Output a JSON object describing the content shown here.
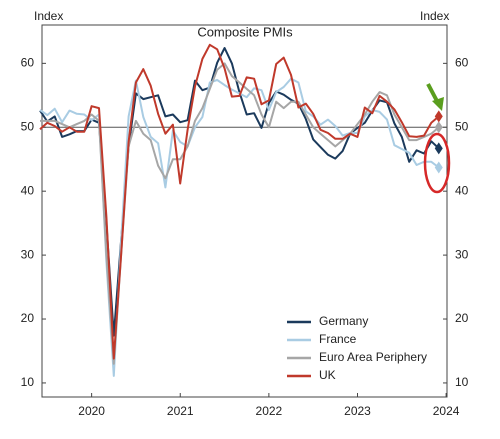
{
  "chart_data": {
    "type": "line",
    "title": "Composite PMIs",
    "y_label": "Index",
    "y2_label": "Index",
    "x": [
      2019.417,
      2019.5,
      2019.583,
      2019.667,
      2019.75,
      2019.833,
      2019.917,
      2020.0,
      2020.083,
      2020.167,
      2020.25,
      2020.333,
      2020.417,
      2020.5,
      2020.583,
      2020.667,
      2020.75,
      2020.833,
      2020.917,
      2021.0,
      2021.083,
      2021.167,
      2021.25,
      2021.333,
      2021.417,
      2021.5,
      2021.583,
      2021.667,
      2021.75,
      2021.833,
      2021.917,
      2022.0,
      2022.083,
      2022.167,
      2022.25,
      2022.333,
      2022.417,
      2022.5,
      2022.583,
      2022.667,
      2022.75,
      2022.833,
      2022.917,
      2023.0,
      2023.083,
      2023.167,
      2023.25,
      2023.333,
      2023.417,
      2023.5,
      2023.583,
      2023.667,
      2023.75,
      2023.833,
      2023.917
    ],
    "xlim": [
      2019.44,
      2024.01
    ],
    "xticks": [
      2020,
      2021,
      2022,
      2023,
      2024
    ],
    "ylim": [
      7.8,
      66
    ],
    "yticks": [
      10,
      20,
      30,
      40,
      50,
      60
    ],
    "y2lim": [
      7.8,
      66
    ],
    "y2ticks": [
      10,
      20,
      30,
      40,
      50,
      60
    ],
    "reference_line": 50,
    "reference_color": "#555555",
    "last_point_markers": true,
    "legend": "lower right",
    "series": [
      {
        "name": "Germany",
        "color": "#1b3a5c",
        "values": [
          52.6,
          50.9,
          51.7,
          48.5,
          48.9,
          49.4,
          49.4,
          51.2,
          50.7,
          35.0,
          17.4,
          32.3,
          47.0,
          55.3,
          54.4,
          54.7,
          55.0,
          51.7,
          52.0,
          50.8,
          51.1,
          57.3,
          55.8,
          56.2,
          60.1,
          62.4,
          60.0,
          55.5,
          52.0,
          52.2,
          49.9,
          53.8,
          55.6,
          55.1,
          54.3,
          53.7,
          51.3,
          48.1,
          46.9,
          45.7,
          45.1,
          46.3,
          49.0,
          49.9,
          50.7,
          52.6,
          54.2,
          53.9,
          50.6,
          48.5,
          44.6,
          46.4,
          45.9,
          47.8,
          46.7
        ]
      },
      {
        "name": "France",
        "color": "#a9cce3",
        "values": [
          52.7,
          51.9,
          52.9,
          50.8,
          52.6,
          52.1,
          52.0,
          51.1,
          52.0,
          28.9,
          11.1,
          32.1,
          51.7,
          57.3,
          51.6,
          48.5,
          47.5,
          40.6,
          49.5,
          47.7,
          47.0,
          50.0,
          51.6,
          57.0,
          57.4,
          56.6,
          55.9,
          55.3,
          54.7,
          56.1,
          55.8,
          52.7,
          55.5,
          56.3,
          57.6,
          57.0,
          52.5,
          51.7,
          50.4,
          51.2,
          50.2,
          48.7,
          49.1,
          49.1,
          51.7,
          52.7,
          52.4,
          51.2,
          47.2,
          46.6,
          46.0,
          44.1,
          44.6,
          44.6,
          43.7
        ]
      },
      {
        "name": "Euro Area Periphery",
        "color": "#a6a6a6",
        "values": [
          51.0,
          51.0,
          51.0,
          50.5,
          50.0,
          50.5,
          51.0,
          52.0,
          51.0,
          30.0,
          13.0,
          30.0,
          47.0,
          51.0,
          49.0,
          48.0,
          44.0,
          42.0,
          45.0,
          45.0,
          47.0,
          51.0,
          53.0,
          56.0,
          59.0,
          60.0,
          58.0,
          57.0,
          56.0,
          55.0,
          52.0,
          50.0,
          54.0,
          53.0,
          54.0,
          54.0,
          52.0,
          50.0,
          49.0,
          48.0,
          47.0,
          48.0,
          49.0,
          50.5,
          52.0,
          54.0,
          55.5,
          55.0,
          52.0,
          50.0,
          48.0,
          48.0,
          48.5,
          49.0,
          50.0
        ]
      },
      {
        "name": "UK",
        "color": "#c0392b",
        "values": [
          49.7,
          50.7,
          50.2,
          49.3,
          50.0,
          49.3,
          49.3,
          53.3,
          53.0,
          36.0,
          13.8,
          30.0,
          47.7,
          57.0,
          59.1,
          56.5,
          52.1,
          49.0,
          50.4,
          41.2,
          49.6,
          56.4,
          60.7,
          62.9,
          62.2,
          59.2,
          54.8,
          54.9,
          57.8,
          57.6,
          53.6,
          54.2,
          59.9,
          60.9,
          58.2,
          53.1,
          53.7,
          52.1,
          49.6,
          49.1,
          48.2,
          48.2,
          49.0,
          48.5,
          53.1,
          52.2,
          54.9,
          54.0,
          52.8,
          50.8,
          48.6,
          48.5,
          48.7,
          50.7,
          51.7
        ]
      }
    ]
  }
}
